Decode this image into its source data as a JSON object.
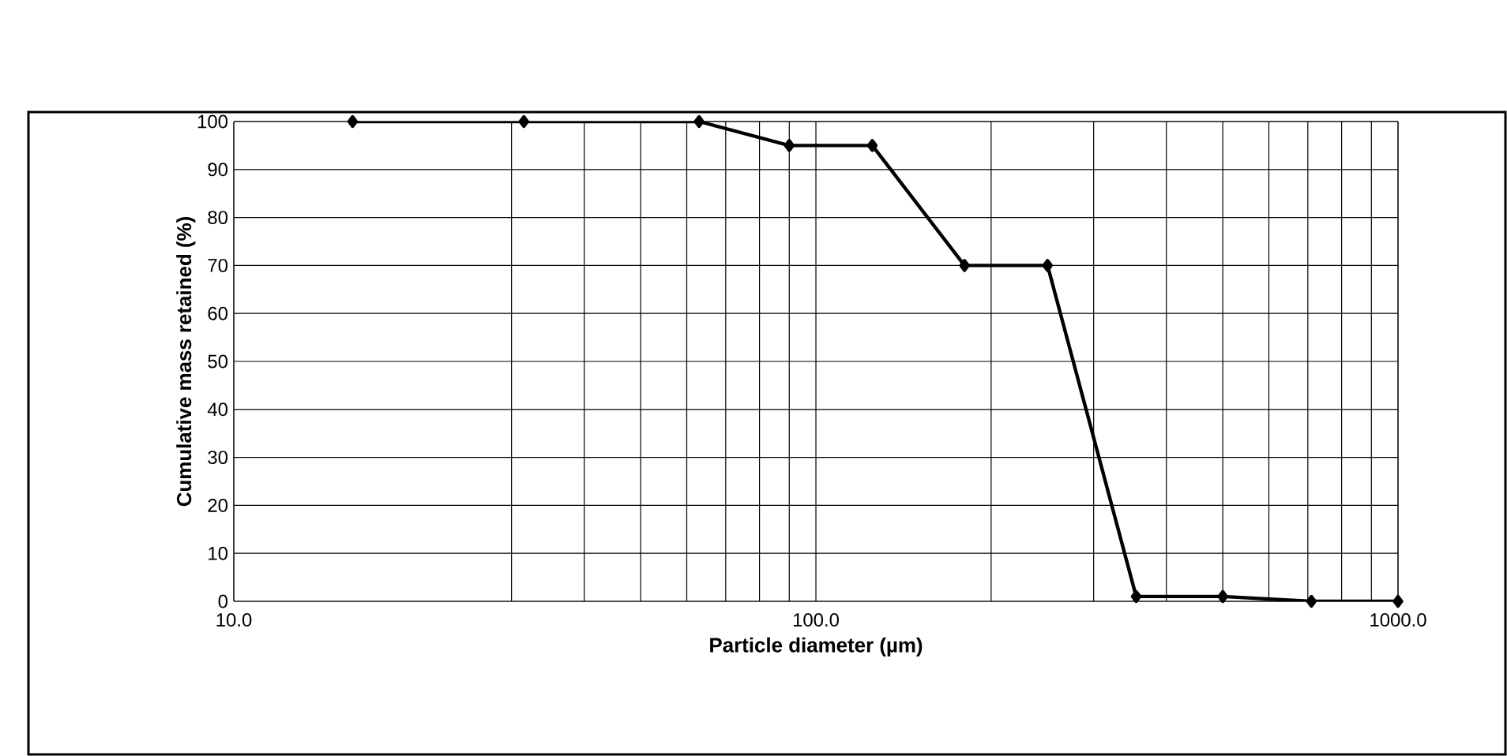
{
  "chart_data": {
    "type": "line",
    "xlabel": "Particle diameter (µm)",
    "ylabel": "Cumulative mass retained (%)",
    "log": "x",
    "x": [
      16,
      31.5,
      63,
      90,
      125,
      180,
      250,
      355,
      500,
      710,
      1000
    ],
    "series": [
      {
        "color": "#000000",
        "values": [
          100,
          100,
          100,
          95,
          95,
          70,
          70,
          1,
          1,
          0,
          0
        ]
      }
    ],
    "xlim": [
      10,
      1000
    ],
    "xticks": [
      {
        "value": 10,
        "label": "10.0"
      },
      {
        "value": 30,
        "label": null
      },
      {
        "value": 40,
        "label": null
      },
      {
        "value": 50,
        "label": null
      },
      {
        "value": 60,
        "label": null
      },
      {
        "value": 70,
        "label": null
      },
      {
        "value": 80,
        "label": null
      },
      {
        "value": 90,
        "label": null
      },
      {
        "value": 100,
        "label": "100.0"
      },
      {
        "value": 200,
        "label": null
      },
      {
        "value": 300,
        "label": null
      },
      {
        "value": 400,
        "label": null
      },
      {
        "value": 500,
        "label": null
      },
      {
        "value": 600,
        "label": null
      },
      {
        "value": 700,
        "label": null
      },
      {
        "value": 800,
        "label": null
      },
      {
        "value": 900,
        "label": null
      },
      {
        "value": 1000,
        "label": "1000.0"
      }
    ],
    "ylim": [
      0,
      100
    ],
    "yticks": [
      0,
      10,
      20,
      30,
      40,
      50,
      60,
      70,
      80,
      90,
      100
    ],
    "grid": true,
    "marker": "diamond",
    "line_style": "solid"
  }
}
